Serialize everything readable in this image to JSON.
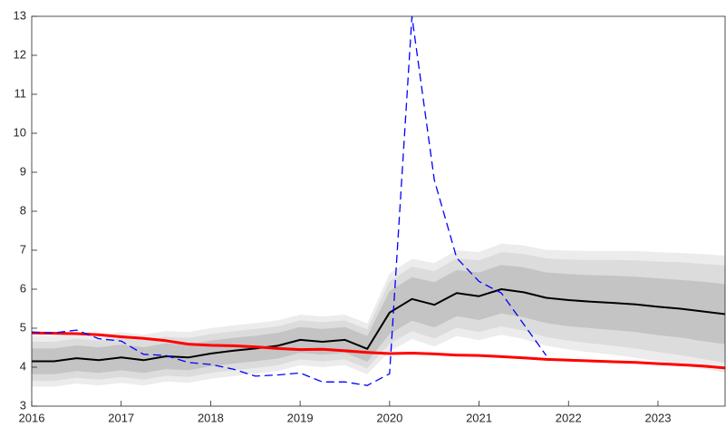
{
  "chart_data": {
    "type": "fan",
    "x": [
      2016,
      2016.25,
      2016.5,
      2016.75,
      2017,
      2017.25,
      2017.5,
      2017.75,
      2018,
      2018.25,
      2018.5,
      2018.75,
      2019,
      2019.25,
      2019.5,
      2019.75,
      2020,
      2020.25,
      2020.5,
      2020.75,
      2021,
      2021.25,
      2021.5,
      2021.75,
      2022,
      2022.25,
      2022.5,
      2022.75,
      2023,
      2023.25,
      2023.5,
      2023.75
    ],
    "bands": [
      {
        "color": "#ececec",
        "lower": [
          3.5,
          3.5,
          3.58,
          3.53,
          3.6,
          3.53,
          3.63,
          3.6,
          3.7,
          3.77,
          3.83,
          3.9,
          4.05,
          4.0,
          4.05,
          3.82,
          4.4,
          4.72,
          4.53,
          4.8,
          4.69,
          4.83,
          4.72,
          4.55,
          4.45,
          4.38,
          4.32,
          4.24,
          4.15,
          4.07,
          3.96,
          3.86
        ],
        "upper": [
          4.8,
          4.8,
          4.88,
          4.83,
          4.9,
          4.83,
          4.93,
          4.9,
          5.0,
          5.07,
          5.13,
          5.2,
          5.35,
          5.3,
          5.35,
          5.12,
          6.4,
          6.78,
          6.67,
          7.0,
          6.95,
          7.17,
          7.12,
          7.01,
          6.99,
          6.98,
          6.98,
          6.98,
          6.95,
          6.93,
          6.9,
          6.86
        ]
      },
      {
        "color": "#dcdcdc",
        "lower": [
          3.65,
          3.65,
          3.73,
          3.68,
          3.75,
          3.68,
          3.78,
          3.75,
          3.85,
          3.92,
          3.98,
          4.05,
          4.2,
          4.15,
          4.2,
          3.97,
          4.6,
          4.92,
          4.74,
          5.01,
          4.9,
          5.05,
          4.94,
          4.77,
          4.68,
          4.61,
          4.55,
          4.48,
          4.39,
          4.31,
          4.21,
          4.11
        ],
        "upper": [
          4.65,
          4.65,
          4.73,
          4.68,
          4.75,
          4.68,
          4.78,
          4.75,
          4.85,
          4.92,
          4.98,
          5.05,
          5.2,
          5.15,
          5.2,
          4.97,
          6.2,
          6.58,
          6.46,
          6.79,
          6.74,
          6.95,
          6.9,
          6.79,
          6.76,
          6.75,
          6.75,
          6.74,
          6.71,
          6.69,
          6.65,
          6.61
        ]
      },
      {
        "color": "#c4c4c4",
        "lower": [
          3.82,
          3.82,
          3.9,
          3.85,
          3.92,
          3.85,
          3.95,
          3.92,
          4.02,
          4.09,
          4.15,
          4.22,
          4.37,
          4.32,
          4.37,
          4.14,
          4.85,
          5.19,
          5.02,
          5.31,
          5.21,
          5.38,
          5.28,
          5.13,
          5.05,
          5.0,
          4.95,
          4.9,
          4.82,
          4.76,
          4.67,
          4.59
        ],
        "upper": [
          4.48,
          4.48,
          4.56,
          4.51,
          4.58,
          4.51,
          4.61,
          4.58,
          4.68,
          4.75,
          4.81,
          4.88,
          5.03,
          4.98,
          5.03,
          4.8,
          5.95,
          6.31,
          6.18,
          6.49,
          6.43,
          6.62,
          6.56,
          6.43,
          6.39,
          6.36,
          6.35,
          6.32,
          6.28,
          6.24,
          6.19,
          6.13
        ]
      }
    ],
    "series": [
      {
        "color": "#000000",
        "width": 2,
        "dashed": false,
        "values": [
          4.15,
          4.15,
          4.23,
          4.18,
          4.25,
          4.18,
          4.28,
          4.25,
          4.35,
          4.42,
          4.48,
          4.55,
          4.7,
          4.65,
          4.7,
          4.47,
          5.4,
          5.75,
          5.6,
          5.9,
          5.82,
          6.0,
          5.92,
          5.78,
          5.72,
          5.68,
          5.65,
          5.61,
          5.55,
          5.5,
          5.43,
          5.36
        ]
      },
      {
        "color": "#ff0000",
        "width": 3,
        "dashed": false,
        "values": [
          4.88,
          4.87,
          4.86,
          4.83,
          4.78,
          4.74,
          4.68,
          4.59,
          4.56,
          4.55,
          4.52,
          4.48,
          4.45,
          4.46,
          4.42,
          4.38,
          4.35,
          4.36,
          4.34,
          4.31,
          4.3,
          4.27,
          4.24,
          4.2,
          4.18,
          4.16,
          4.14,
          4.12,
          4.09,
          4.06,
          4.03,
          3.98
        ]
      },
      {
        "color": "#0000ff",
        "width": 1.3,
        "dashed": true,
        "values": [
          4.9,
          4.88,
          4.95,
          4.73,
          4.67,
          4.33,
          4.3,
          4.12,
          4.07,
          3.95,
          3.77,
          3.8,
          3.85,
          3.62,
          3.62,
          3.53,
          3.83,
          13.0,
          8.8,
          6.8,
          6.2,
          5.9,
          5.1,
          4.3,
          null,
          null,
          null,
          null,
          null,
          null,
          null,
          null
        ]
      }
    ],
    "xlim": [
      2016,
      2023.75
    ],
    "xticks": [
      2016,
      2017,
      2018,
      2019,
      2020,
      2021,
      2022,
      2023
    ],
    "ylim": [
      3,
      13
    ],
    "yticks": [
      3,
      4,
      5,
      6,
      7,
      8,
      9,
      10,
      11,
      12,
      13
    ]
  }
}
